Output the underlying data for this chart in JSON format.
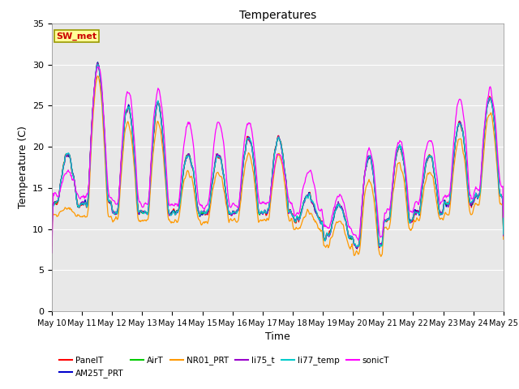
{
  "title": "Temperatures",
  "xlabel": "Time",
  "ylabel": "Temperature (C)",
  "ylim": [
    0,
    35
  ],
  "yticks": [
    0,
    5,
    10,
    15,
    20,
    25,
    30,
    35
  ],
  "annotation_text": "SW_met",
  "annotation_box_color": "#ffff99",
  "annotation_text_color": "#cc0000",
  "annotation_border_color": "#999900",
  "series_colors": {
    "PanelT": "#ff0000",
    "AM25T_PRT": "#0000cc",
    "AirT": "#00cc00",
    "NR01_PRT": "#ff9900",
    "li75_t": "#9900cc",
    "li77_temp": "#00cccc",
    "sonicT": "#ff00ff"
  },
  "background_plot_light": "#e8e8e8",
  "background_plot_dark": "#d0d0d0",
  "background_fig": "#ffffff",
  "grid_color": "#ffffff",
  "xtick_labels": [
    "May 10",
    "May 11",
    "May 12",
    "May 13",
    "May 14",
    "May 15",
    "May 16",
    "May 17",
    "May 18",
    "May 19",
    "May 20",
    "May 21",
    "May 22",
    "May 23",
    "May 24",
    "May 25"
  ],
  "legend_order": [
    "PanelT",
    "AM25T_PRT",
    "AirT",
    "NR01_PRT",
    "li75_t",
    "li77_temp",
    "sonicT"
  ]
}
